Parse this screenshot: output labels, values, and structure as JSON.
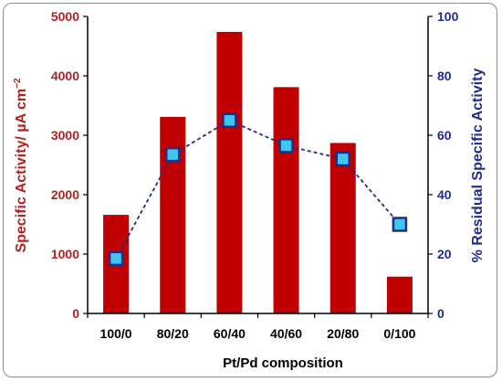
{
  "chart_data": {
    "type": "bar",
    "categories": [
      "100/0",
      "80/20",
      "60/40",
      "40/60",
      "20/80",
      "0/100"
    ],
    "xlabel": "Pt/Pd composition",
    "ylabel_left": "Specific Activity/ µA cm",
    "ylabel_left_sup": "−2",
    "ylabel_right": "% Residual Specific Activity",
    "ylim_left": [
      0,
      5000
    ],
    "ylim_right": [
      0,
      100
    ],
    "yticks_left": [
      0,
      1000,
      2000,
      3000,
      4000,
      5000
    ],
    "yticks_right": [
      0,
      20,
      40,
      60,
      80,
      100
    ],
    "grid": false,
    "series": [
      {
        "type": "bar",
        "axis": "left",
        "color": "#c00000",
        "values": [
          1660,
          3310,
          4740,
          3810,
          2870,
          620
        ]
      },
      {
        "type": "line",
        "axis": "right",
        "color": "#1f2c8c",
        "marker": "square",
        "marker_fill": "#40c4f0",
        "values": [
          18.5,
          53.5,
          65,
          56.5,
          52,
          30
        ]
      }
    ],
    "colors": {
      "left_axis_text": "#b22222",
      "right_axis_text": "#1f2c8c",
      "axis_line": "#000000"
    }
  }
}
